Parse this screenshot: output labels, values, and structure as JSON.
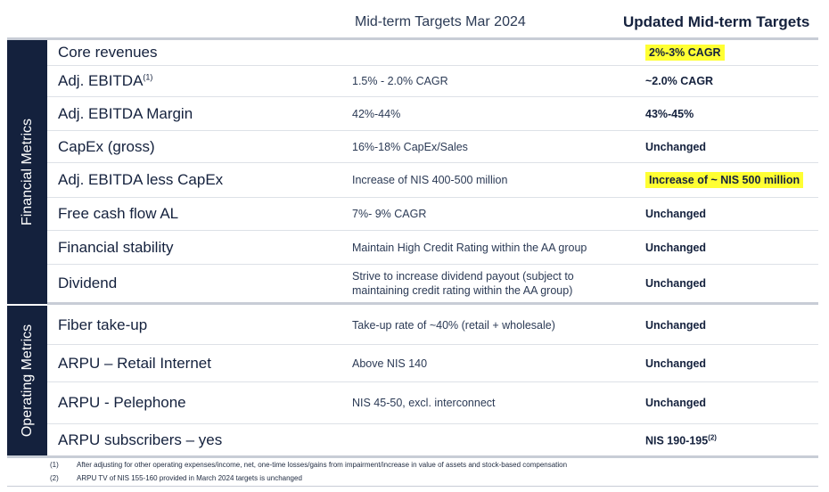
{
  "header": {
    "mid_term": "Mid-term Targets Mar 2024",
    "updated": "Updated Mid-term Targets"
  },
  "sections": {
    "financial": "Financial Metrics",
    "operating": "Operating Metrics"
  },
  "rows": [
    {
      "metric": "Core revenues",
      "sup": "",
      "mid": "",
      "updated": "2%-3% CAGR",
      "updated_sup": ""
    },
    {
      "metric": "Adj. EBITDA",
      "sup": "(1)",
      "mid": "1.5% - 2.0% CAGR",
      "updated": "~2.0% CAGR",
      "updated_sup": ""
    },
    {
      "metric": "Adj. EBITDA Margin",
      "sup": "",
      "mid": "42%-44%",
      "updated": "43%-45%",
      "updated_sup": ""
    },
    {
      "metric": "CapEx (gross)",
      "sup": "",
      "mid": "16%-18% CapEx/Sales",
      "updated": "Unchanged",
      "updated_sup": ""
    },
    {
      "metric": "Adj. EBITDA less CapEx",
      "sup": "",
      "mid": "Increase of NIS 400-500 million",
      "updated": "Increase of ~ NIS 500 million",
      "updated_sup": ""
    },
    {
      "metric": "Free cash flow AL",
      "sup": "",
      "mid": "7%- 9% CAGR",
      "updated": "Unchanged",
      "updated_sup": ""
    },
    {
      "metric": "Financial stability",
      "sup": "",
      "mid": "Maintain High Credit Rating within the AA group",
      "updated": "Unchanged",
      "updated_sup": ""
    },
    {
      "metric": "Dividend",
      "sup": "",
      "mid": "Strive to increase dividend payout (subject to",
      "mid_line2": "maintaining credit rating within the AA group)",
      "updated": "Unchanged",
      "updated_sup": ""
    },
    {
      "metric": "Fiber take-up",
      "sup": "",
      "mid": "Take-up rate of ~40% (retail + wholesale)",
      "updated": "Unchanged",
      "updated_sup": ""
    },
    {
      "metric": "ARPU – Retail Internet",
      "sup": "",
      "mid": "Above NIS 140",
      "updated": "Unchanged",
      "updated_sup": ""
    },
    {
      "metric": "ARPU - Pelephone",
      "sup": "",
      "mid": "NIS 45-50, excl. interconnect",
      "updated": "Unchanged",
      "updated_sup": ""
    },
    {
      "metric": "ARPU subscribers – yes",
      "sup": "",
      "mid": "",
      "updated": "NIS 190-195",
      "updated_sup": "(2)"
    }
  ],
  "footnotes": [
    {
      "num": "(1)",
      "text": "After adjusting for other operating expenses/income, net, one-time losses/gains from impairment/increase in value of assets and stock-based compensation"
    },
    {
      "num": "(2)",
      "text": "ARPU TV of NIS 155-160 provided in March 2024 targets is unchanged"
    }
  ],
  "colors": {
    "navy": "#14213d",
    "highlight": "#ffff33",
    "rule": "#c8cdd6"
  }
}
